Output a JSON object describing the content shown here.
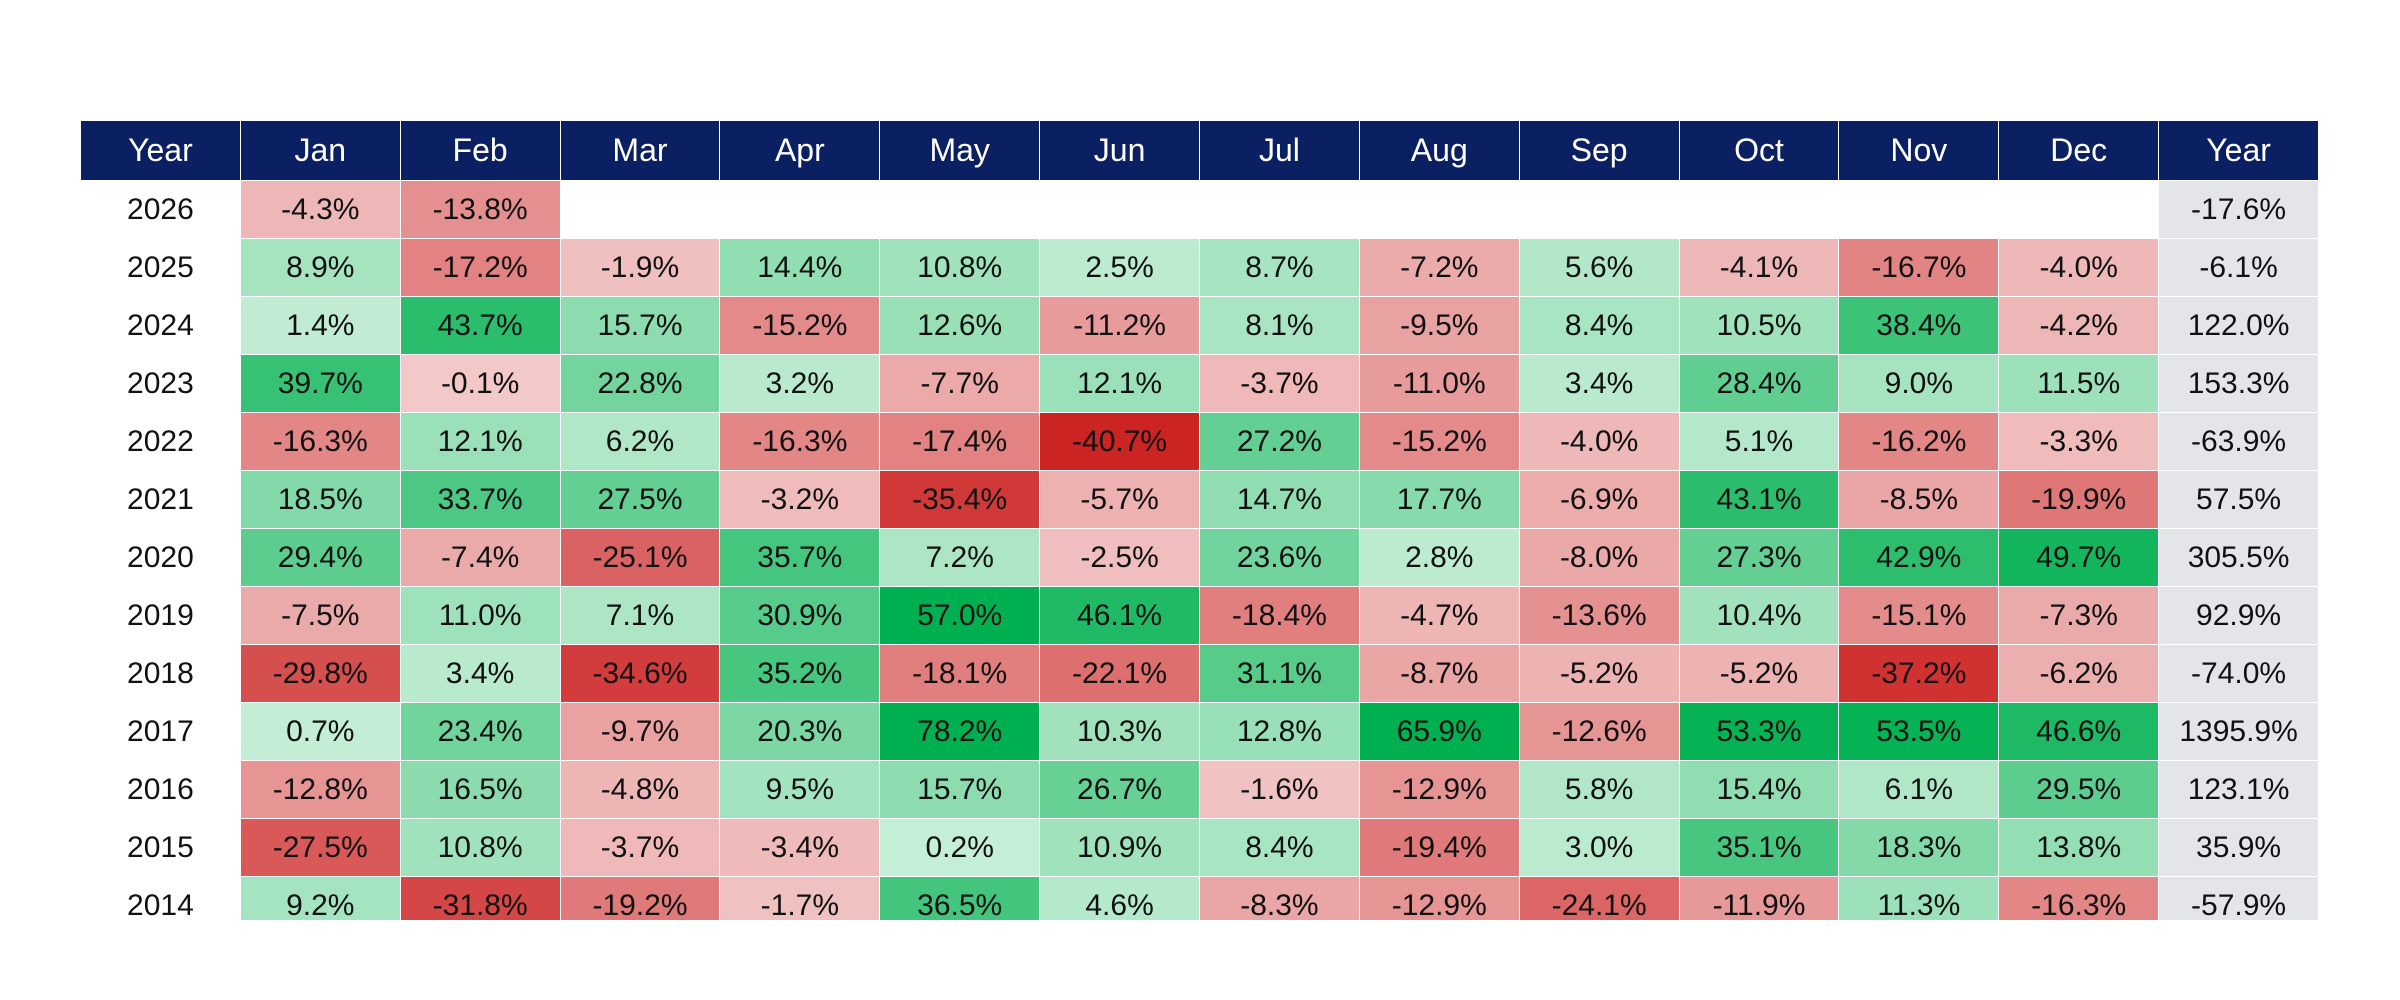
{
  "table": {
    "header": [
      "Year",
      "Jan",
      "Feb",
      "Mar",
      "Apr",
      "May",
      "Jun",
      "Jul",
      "Aug",
      "Sep",
      "Oct",
      "Nov",
      "Dec",
      "Year"
    ],
    "rows": [
      [
        2026,
        "-4.3%",
        "-13.8%",
        null,
        null,
        null,
        null,
        null,
        null,
        null,
        null,
        null,
        null,
        "-17.6%"
      ],
      [
        2025,
        "8.9%",
        "-17.2%",
        "-1.9%",
        "14.4%",
        "10.8%",
        "2.5%",
        "8.7%",
        "-7.2%",
        "5.6%",
        "-4.1%",
        "-16.7%",
        "-4.0%",
        "-6.1%"
      ],
      [
        2024,
        "1.4%",
        "43.7%",
        "15.7%",
        "-15.2%",
        "12.6%",
        "-11.2%",
        "8.1%",
        "-9.5%",
        "8.4%",
        "10.5%",
        "38.4%",
        "-4.2%",
        "122.0%"
      ],
      [
        2023,
        "39.7%",
        "-0.1%",
        "22.8%",
        "3.2%",
        "-7.7%",
        "12.1%",
        "-3.7%",
        "-11.0%",
        "3.4%",
        "28.4%",
        "9.0%",
        "11.5%",
        "153.3%"
      ],
      [
        2022,
        "-16.3%",
        "12.1%",
        "6.2%",
        "-16.3%",
        "-17.4%",
        "-40.7%",
        "27.2%",
        "-15.2%",
        "-4.0%",
        "5.1%",
        "-16.2%",
        "-3.3%",
        "-63.9%"
      ],
      [
        2021,
        "18.5%",
        "33.7%",
        "27.5%",
        "-3.2%",
        "-35.4%",
        "-5.7%",
        "14.7%",
        "17.7%",
        "-6.9%",
        "43.1%",
        "-8.5%",
        "-19.9%",
        "57.5%"
      ],
      [
        2020,
        "29.4%",
        "-7.4%",
        "-25.1%",
        "35.7%",
        "7.2%",
        "-2.5%",
        "23.6%",
        "2.8%",
        "-8.0%",
        "27.3%",
        "42.9%",
        "49.7%",
        "305.5%"
      ],
      [
        2019,
        "-7.5%",
        "11.0%",
        "7.1%",
        "30.9%",
        "57.0%",
        "46.1%",
        "-18.4%",
        "-4.7%",
        "-13.6%",
        "10.4%",
        "-15.1%",
        "-7.3%",
        "92.9%"
      ],
      [
        2018,
        "-29.8%",
        "3.4%",
        "-34.6%",
        "35.2%",
        "-18.1%",
        "-22.1%",
        "31.1%",
        "-8.7%",
        "-5.2%",
        "-5.2%",
        "-37.2%",
        "-6.2%",
        "-74.0%"
      ],
      [
        2017,
        "0.7%",
        "23.4%",
        "-9.7%",
        "20.3%",
        "78.2%",
        "10.3%",
        "12.8%",
        "65.9%",
        "-12.6%",
        "53.3%",
        "53.5%",
        "46.6%",
        "1395.9%"
      ],
      [
        2016,
        "-12.8%",
        "16.5%",
        "-4.8%",
        "9.5%",
        "15.7%",
        "26.7%",
        "-1.6%",
        "-12.9%",
        "5.8%",
        "15.4%",
        "6.1%",
        "29.5%",
        "123.1%"
      ],
      [
        2015,
        "-27.5%",
        "10.8%",
        "-3.7%",
        "-3.4%",
        "0.2%",
        "10.9%",
        "8.4%",
        "-19.4%",
        "3.0%",
        "35.1%",
        "18.3%",
        "13.8%",
        "35.9%"
      ],
      [
        2014,
        "9.2%",
        "-31.8%",
        "-19.2%",
        "-1.7%",
        "36.5%",
        "4.6%",
        "-8.3%",
        "-12.9%",
        "-24.1%",
        "-11.9%",
        "11.3%",
        "-16.3%",
        "-57.9%"
      ]
    ]
  }
}
